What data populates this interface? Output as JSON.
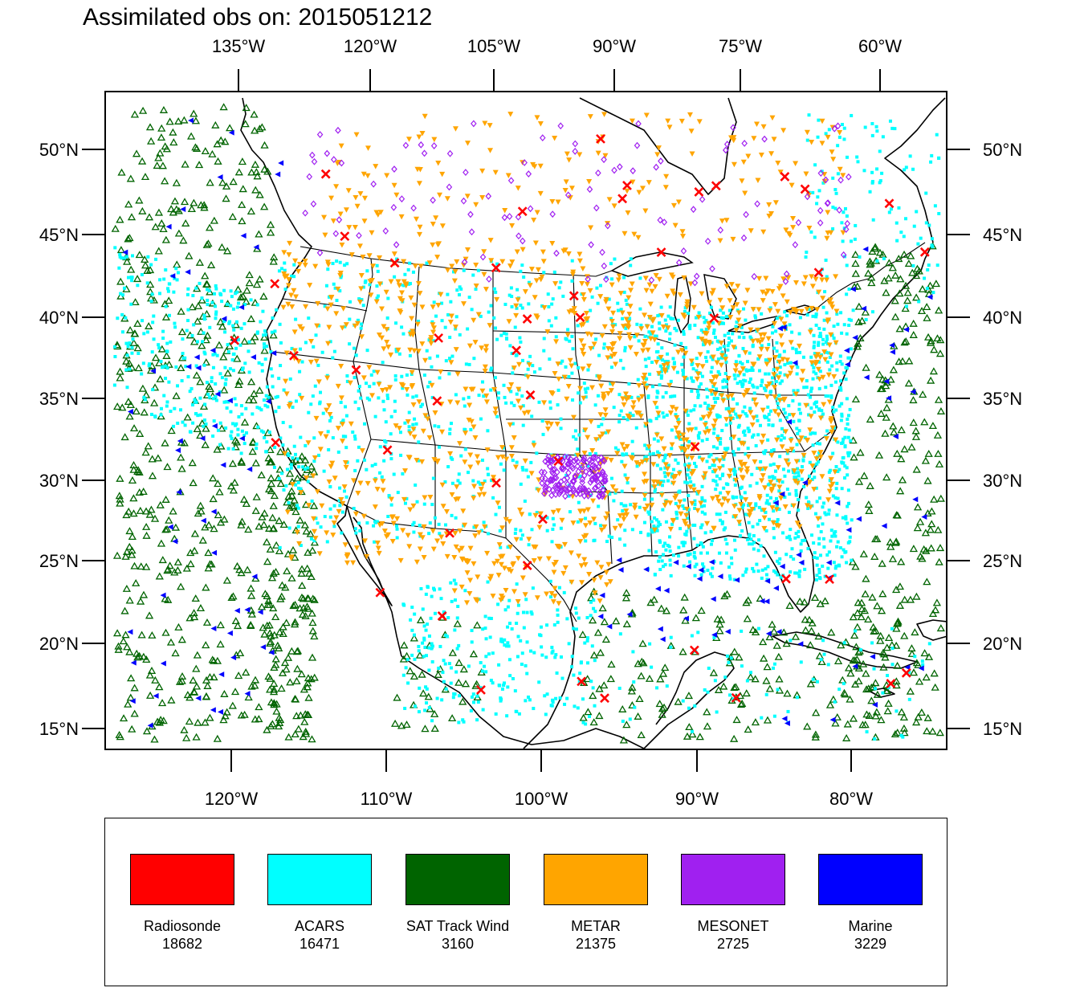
{
  "title": "Assimilated obs on: 2015051212",
  "axes": {
    "top_ticks": [
      "135°W",
      "120°W",
      "105°W",
      "90°W",
      "75°W",
      "60°W"
    ],
    "bottom_ticks": [
      "120°W",
      "110°W",
      "100°W",
      "90°W",
      "80°W"
    ],
    "left_ticks": [
      "50°N",
      "45°N",
      "40°N",
      "35°N",
      "30°N",
      "25°N",
      "20°N",
      "15°N"
    ],
    "right_ticks": [
      "50°N",
      "45°N",
      "40°N",
      "35°N",
      "30°N",
      "25°N",
      "20°N",
      "15°N"
    ]
  },
  "map": {
    "projection": "Lambert conformal, CONUS",
    "lon_range": [
      -127.5,
      -73.5
    ],
    "lat_range": [
      13.8,
      53.5
    ],
    "features": [
      "coastlines",
      "state boundaries",
      "national boundaries",
      "Great Lakes"
    ]
  },
  "legend": {
    "items": [
      {
        "name": "Radiosonde",
        "count": "18682",
        "color": "#ff0000",
        "marker": "x-mark"
      },
      {
        "name": "ACARS",
        "count": "16471",
        "color": "#00ffff",
        "marker": "square-dot"
      },
      {
        "name": "SAT Track Wind",
        "count": "3160",
        "color": "#006400",
        "marker": "open-triangle-up"
      },
      {
        "name": "METAR",
        "count": "21375",
        "color": "#ffa500",
        "marker": "filled-triangle-down"
      },
      {
        "name": "MESONET",
        "count": "2725",
        "color": "#a020f0",
        "marker": "open-diamond"
      },
      {
        "name": "Marine",
        "count": "3229",
        "color": "#0000ff",
        "marker": "filled-triangle-left"
      }
    ]
  },
  "chart_data": {
    "type": "scatter",
    "title": "Assimilated obs on: 2015051212",
    "xlabel": "",
    "ylabel": "",
    "xlim": [
      -127.5,
      -73.5
    ],
    "ylim": [
      13.8,
      53.5
    ],
    "series": [
      {
        "name": "Radiosonde",
        "count": 18682,
        "sample_points": [
          [
            -113.9,
            48.9
          ],
          [
            -112.7,
            45.1
          ],
          [
            -117.2,
            42.4
          ],
          [
            -119.8,
            39.1
          ],
          [
            -116.0,
            38.0
          ],
          [
            -112.0,
            37.0
          ],
          [
            -109.5,
            43.4
          ],
          [
            -106.7,
            38.8
          ],
          [
            -103.0,
            43.0
          ],
          [
            -101.0,
            39.9
          ],
          [
            -98.0,
            41.3
          ],
          [
            -101.7,
            38.0
          ],
          [
            -106.8,
            35.0
          ],
          [
            -110.0,
            32.1
          ],
          [
            -117.2,
            32.8
          ],
          [
            -100.8,
            35.3
          ],
          [
            -103.0,
            30.0
          ],
          [
            -99.0,
            31.3
          ],
          [
            -100.0,
            27.8
          ],
          [
            -101.0,
            25.0
          ],
          [
            -106.0,
            27.0
          ],
          [
            -110.5,
            23.5
          ],
          [
            -106.5,
            22.0
          ],
          [
            -104.0,
            17.5
          ],
          [
            -97.5,
            18.0
          ],
          [
            -96.0,
            17.0
          ],
          [
            -90.2,
            20.0
          ],
          [
            -87.5,
            17.2
          ],
          [
            -84.3,
            24.5
          ],
          [
            -81.5,
            24.6
          ],
          [
            -77.5,
            18.5
          ],
          [
            -76.5,
            19.2
          ],
          [
            -90.2,
            32.3
          ],
          [
            -89.0,
            40.1
          ],
          [
            -92.4,
            44.0
          ],
          [
            -90.0,
            47.7
          ],
          [
            -84.5,
            48.8
          ],
          [
            -88.9,
            48.1
          ],
          [
            -94.9,
            47.2
          ],
          [
            -96.3,
            50.8
          ],
          [
            -77.8,
            47.5
          ],
          [
            -72.5,
            46.8
          ],
          [
            -75.5,
            44.7
          ],
          [
            -82.3,
            43.1
          ],
          [
            -83.2,
            48.1
          ],
          [
            -101.3,
            46.4
          ],
          [
            -97.6,
            40.0
          ],
          [
            -94.6,
            48.0
          ]
        ]
      },
      {
        "name": "ACARS",
        "count": 16471
      },
      {
        "name": "SAT Track Wind",
        "count": 3160
      },
      {
        "name": "METAR",
        "count": 21375
      },
      {
        "name": "MESONET",
        "count": 2725
      },
      {
        "name": "Marine",
        "count": 3229
      }
    ],
    "grid": false,
    "legend_position": "bottom"
  }
}
